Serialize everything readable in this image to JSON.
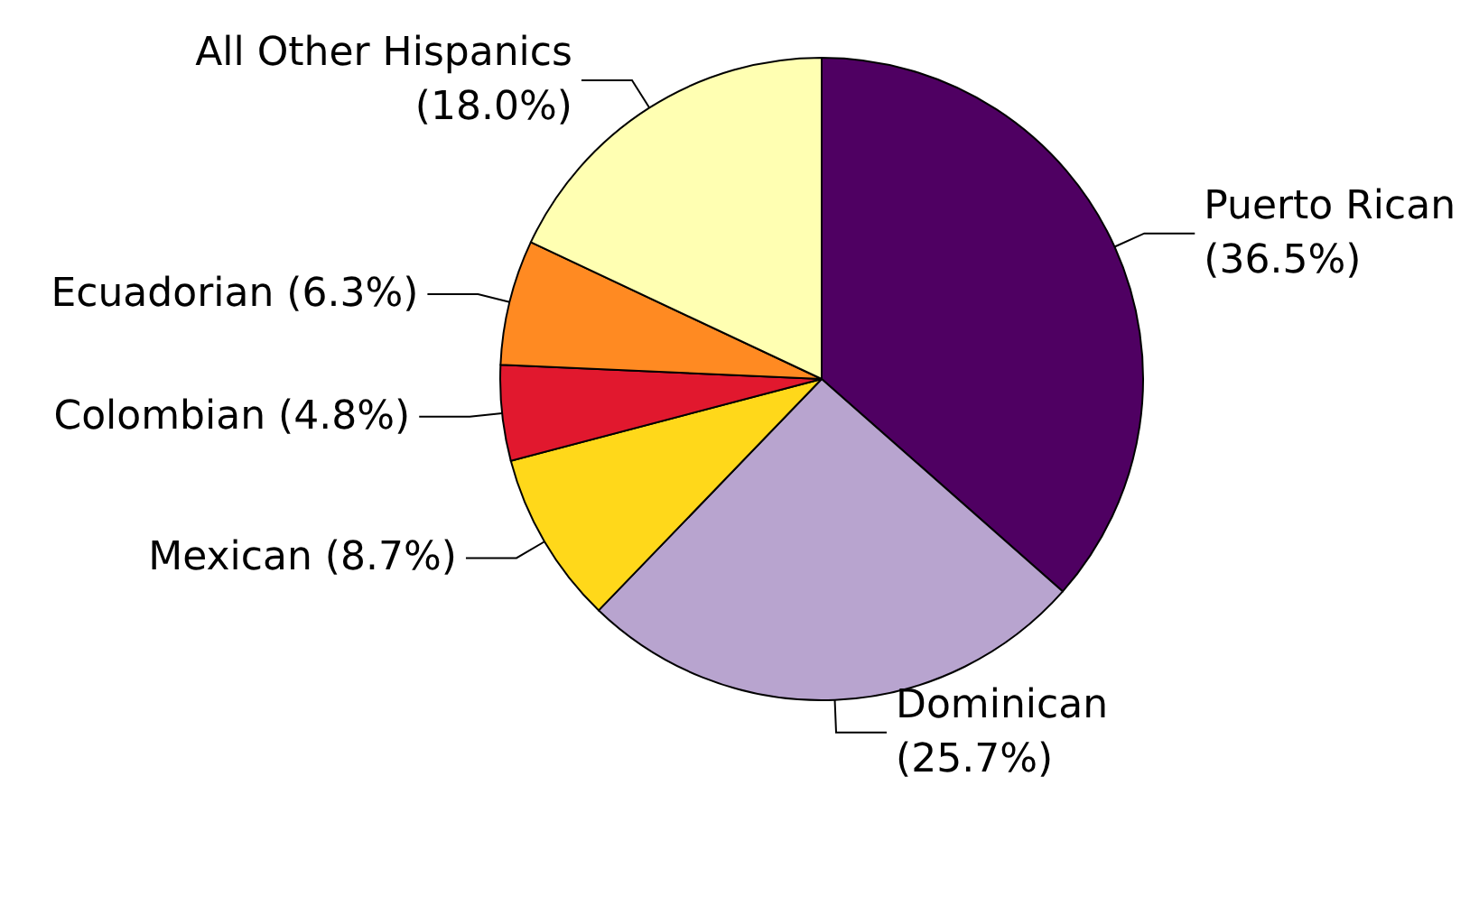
{
  "chart_data": {
    "type": "pie",
    "categories": [
      "Puerto Rican",
      "Dominican",
      "Mexican",
      "Colombian",
      "Ecuadorian",
      "All Other Hispanics"
    ],
    "values": [
      36.5,
      25.7,
      8.7,
      4.8,
      6.3,
      18.0
    ],
    "value_labels": [
      "(36.5%)",
      "(25.7%)",
      "(8.7%)",
      "(4.8%)",
      "(6.3%)",
      "(18.0%)"
    ],
    "colors": [
      "#4f0062",
      "#b8a4cf",
      "#ffd81a",
      "#e1182e",
      "#ff8a22",
      "#ffffb2"
    ],
    "legend": false
  }
}
